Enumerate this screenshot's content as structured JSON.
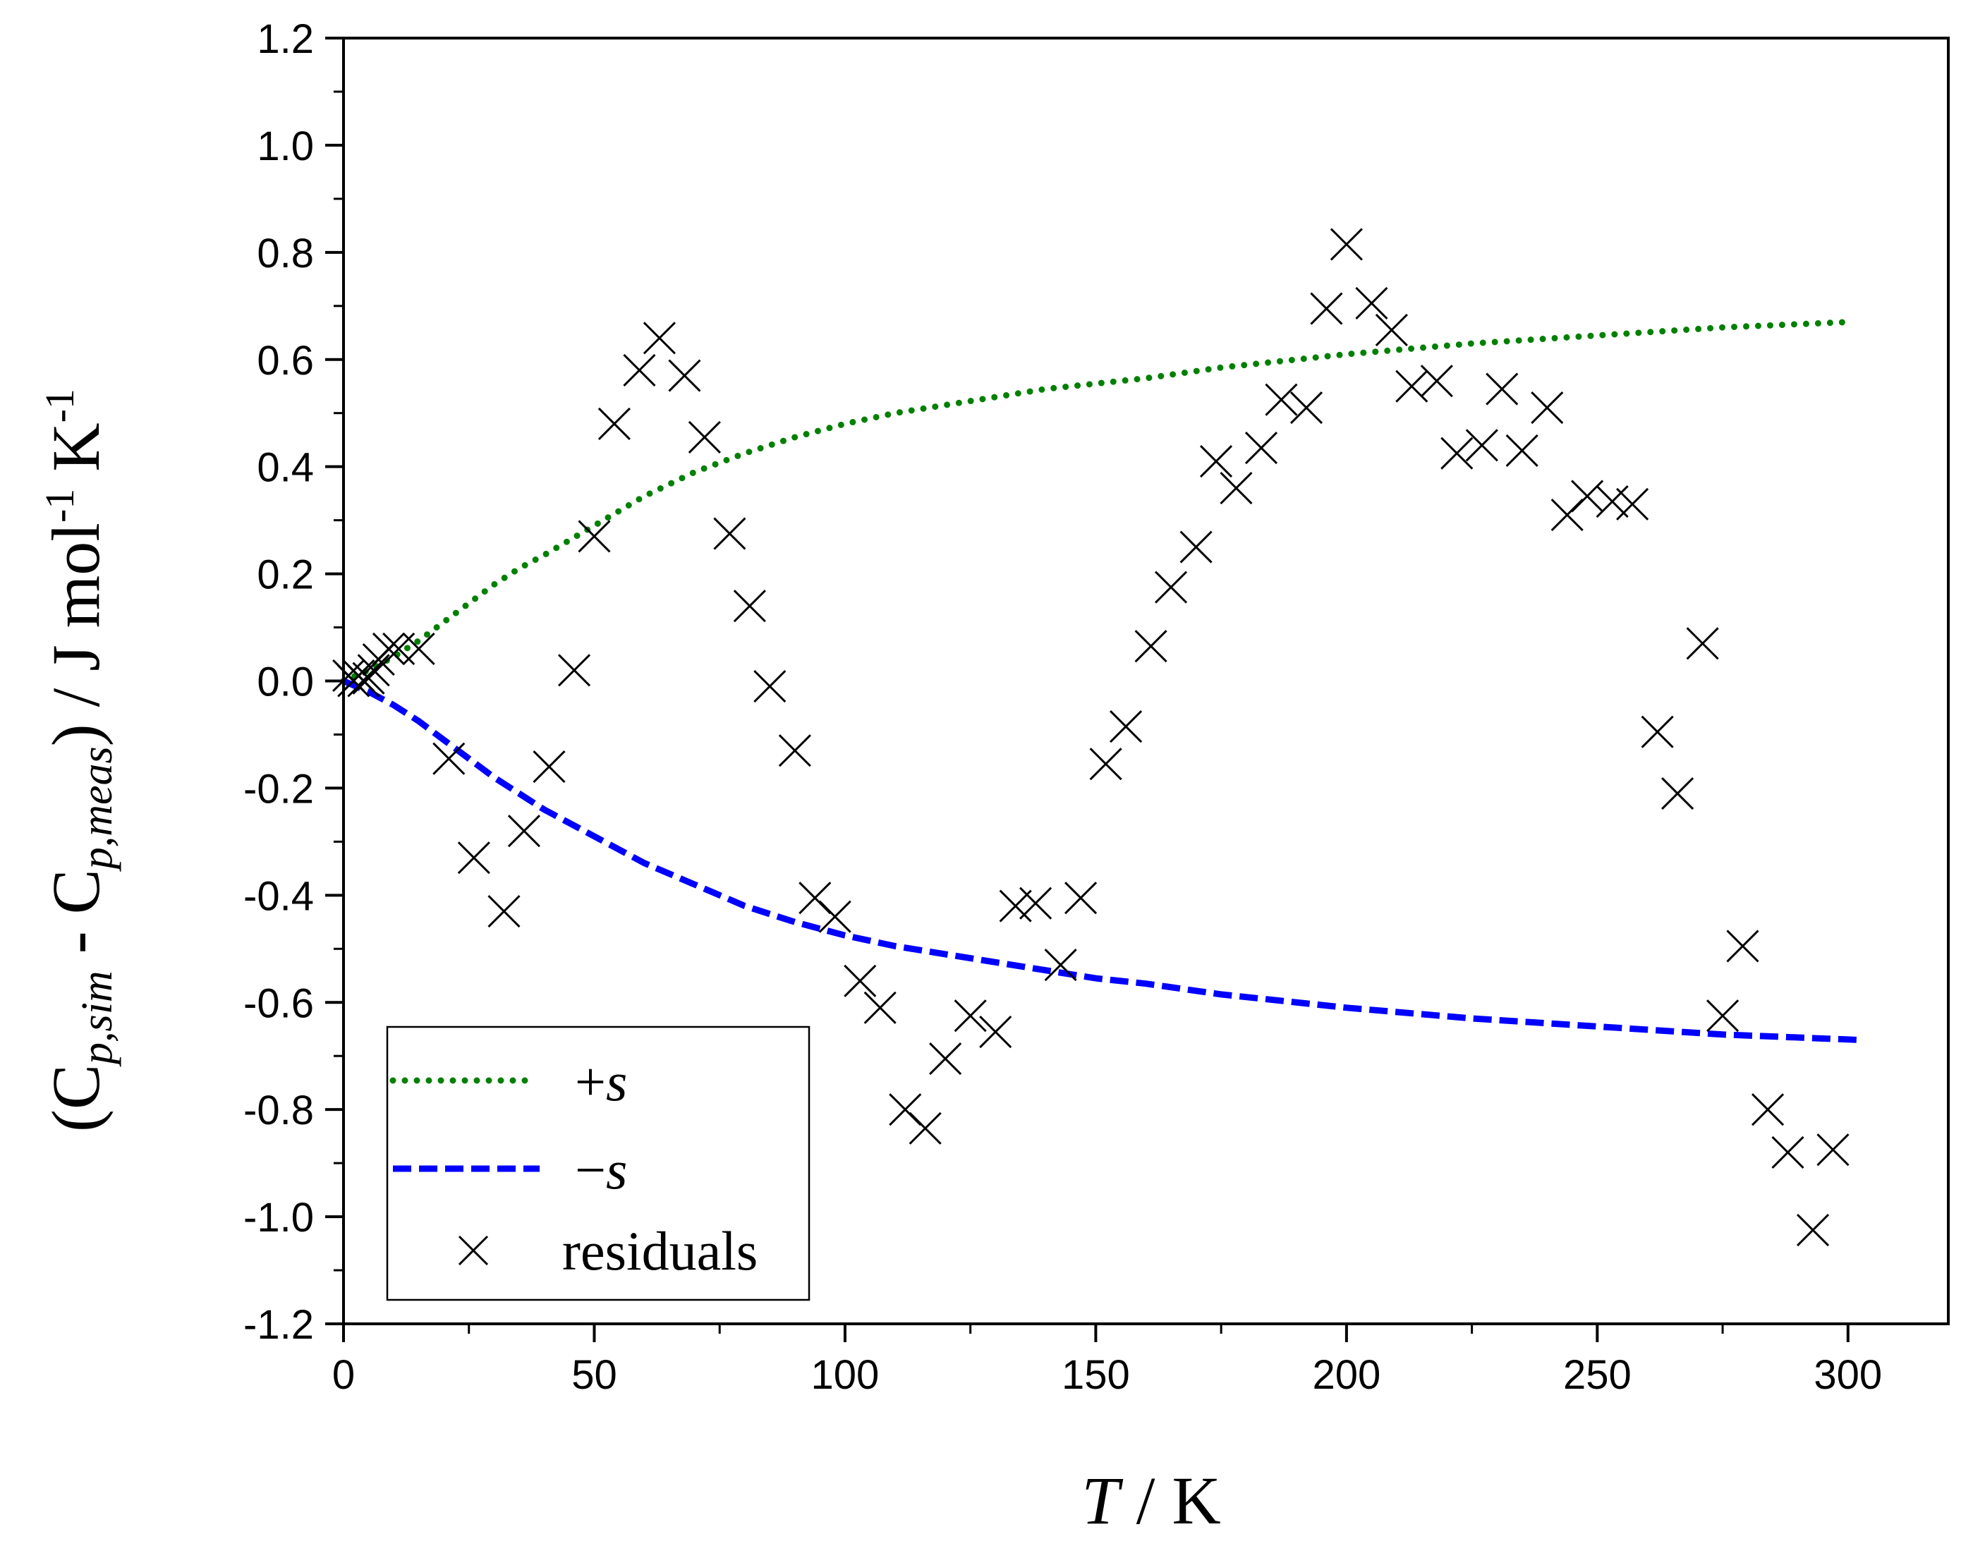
{
  "chart_data": {
    "type": "scatter",
    "title": "",
    "xlabel": {
      "symbol": "T",
      "rest": " / K"
    },
    "ylabel": {
      "open": "(C",
      "sub1": "p,sim",
      "mid": " - C",
      "sub2": "p,meas",
      "close": ") / J mol",
      "sup1": "-1",
      "unit2": " K",
      "sup2": "-1"
    },
    "xlim": [
      0,
      320
    ],
    "ylim": [
      -1.2,
      1.2
    ],
    "xticks": [
      0,
      50,
      100,
      150,
      200,
      250,
      300
    ],
    "yticks": [
      -1.2,
      -1.0,
      -0.8,
      -0.6,
      -0.4,
      -0.2,
      0.0,
      0.2,
      0.4,
      0.6,
      0.8,
      1.0,
      1.2
    ],
    "xtick_labels": [
      "0",
      "50",
      "100",
      "150",
      "200",
      "250",
      "300"
    ],
    "ytick_labels": [
      "-1.2",
      "-1.0",
      "-0.8",
      "-0.6",
      "-0.4",
      "-0.2",
      "0.0",
      "0.2",
      "0.4",
      "0.6",
      "0.8",
      "1.0",
      "1.2"
    ],
    "legend_position": "bottom-left",
    "grid": false,
    "series": [
      {
        "name": "+s",
        "legend_prefix": "+",
        "legend_symbol": "s",
        "style": "dotted",
        "color": "#008000",
        "x": [
          0,
          5,
          10,
          15,
          20,
          25,
          30,
          35,
          40,
          50,
          60,
          70,
          80,
          90,
          100,
          110,
          120,
          130,
          140,
          150,
          160,
          175,
          200,
          225,
          250,
          275,
          300
        ],
        "y": [
          0.0,
          0.02,
          0.045,
          0.075,
          0.11,
          0.145,
          0.18,
          0.21,
          0.235,
          0.29,
          0.345,
          0.39,
          0.425,
          0.455,
          0.48,
          0.5,
          0.515,
          0.53,
          0.545,
          0.555,
          0.565,
          0.585,
          0.61,
          0.63,
          0.645,
          0.66,
          0.67
        ]
      },
      {
        "name": "−s",
        "legend_prefix": "−",
        "legend_symbol": "s",
        "style": "dashed",
        "color": "#0000ff",
        "x": [
          0,
          5,
          10,
          15,
          20,
          25,
          30,
          40,
          50,
          60,
          70,
          80,
          90,
          100,
          110,
          120,
          130,
          140,
          150,
          160,
          175,
          200,
          225,
          250,
          275,
          302
        ],
        "y": [
          0.0,
          -0.02,
          -0.045,
          -0.075,
          -0.11,
          -0.145,
          -0.18,
          -0.24,
          -0.29,
          -0.34,
          -0.38,
          -0.42,
          -0.45,
          -0.475,
          -0.495,
          -0.51,
          -0.525,
          -0.54,
          -0.555,
          -0.565,
          -0.585,
          -0.61,
          -0.63,
          -0.645,
          -0.66,
          -0.67
        ]
      },
      {
        "name": "residuals",
        "style": "cross",
        "color": "#000000",
        "x": [
          1,
          2,
          3,
          4,
          5,
          6,
          7,
          9,
          11,
          15,
          21,
          26,
          32,
          36,
          41,
          46,
          50,
          54,
          59,
          63,
          68,
          72,
          77,
          81,
          85,
          90,
          94,
          98,
          103,
          107,
          112,
          116,
          120,
          125,
          130,
          134,
          138,
          143,
          147,
          152,
          156,
          161,
          165,
          170,
          174,
          178,
          183,
          187,
          192,
          196,
          200,
          205,
          209,
          213,
          218,
          222,
          227,
          231,
          235,
          240,
          244,
          248,
          253,
          257,
          262,
          266,
          271,
          275,
          279,
          284,
          288,
          293,
          297
        ],
        "y": [
          0.01,
          0.0,
          0.01,
          0.0,
          0.005,
          0.02,
          0.04,
          0.06,
          0.06,
          0.06,
          -0.145,
          -0.33,
          -0.43,
          -0.28,
          -0.16,
          0.02,
          0.27,
          0.48,
          0.58,
          0.64,
          0.57,
          0.455,
          0.275,
          0.14,
          -0.01,
          -0.13,
          -0.405,
          -0.44,
          -0.56,
          -0.61,
          -0.8,
          -0.835,
          -0.705,
          -0.625,
          -0.655,
          -0.42,
          -0.415,
          -0.53,
          -0.405,
          -0.155,
          -0.085,
          0.065,
          0.175,
          0.25,
          0.41,
          0.36,
          0.435,
          0.525,
          0.51,
          0.695,
          0.815,
          0.705,
          0.655,
          0.55,
          0.56,
          0.425,
          0.44,
          0.545,
          0.43,
          0.51,
          0.31,
          0.345,
          0.335,
          0.33,
          -0.095,
          -0.21,
          0.07,
          -0.625,
          -0.495,
          -0.8,
          -0.88,
          -1.025,
          -0.875
        ]
      }
    ]
  }
}
